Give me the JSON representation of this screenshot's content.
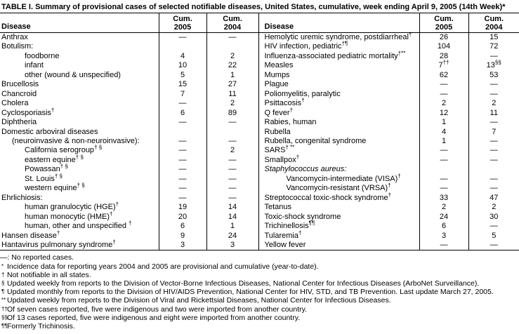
{
  "title": "TABLE I. Summary of provisional cases of selected notifiable diseases, United States, cumulative, week ending April 9, 2005 (14th Week)*",
  "table": {
    "header": {
      "disease_left": "Disease",
      "disease_right": "Disease",
      "cum2005": [
        "Cum.",
        "2005"
      ],
      "cum2004": [
        "Cum.",
        "2004"
      ]
    },
    "rows_left": [
      {
        "disease": "Anthrax",
        "sup": "",
        "indent": 0,
        "c05": "—",
        "c05s": "",
        "c04": "—",
        "c04s": ""
      },
      {
        "disease": "Botulism:",
        "sup": "",
        "indent": 0,
        "c05": "",
        "c05s": "",
        "c04": "",
        "c04s": ""
      },
      {
        "disease": "foodborne",
        "sup": "",
        "indent": 2,
        "c05": "4",
        "c05s": "",
        "c04": "2",
        "c04s": ""
      },
      {
        "disease": "infant",
        "sup": "",
        "indent": 2,
        "c05": "10",
        "c05s": "",
        "c04": "22",
        "c04s": ""
      },
      {
        "disease": "other (wound & unspecified)",
        "sup": "",
        "indent": 2,
        "c05": "5",
        "c05s": "",
        "c04": "1",
        "c04s": ""
      },
      {
        "disease": "Brucellosis",
        "sup": "",
        "indent": 0,
        "c05": "15",
        "c05s": "",
        "c04": "27",
        "c04s": ""
      },
      {
        "disease": "Chancroid",
        "sup": "",
        "indent": 0,
        "c05": "7",
        "c05s": "",
        "c04": "11",
        "c04s": ""
      },
      {
        "disease": "Cholera",
        "sup": "",
        "indent": 0,
        "c05": "—",
        "c05s": "",
        "c04": "2",
        "c04s": ""
      },
      {
        "disease": "Cyclosporiasis",
        "sup": "†",
        "indent": 0,
        "c05": "6",
        "c05s": "",
        "c04": "89",
        "c04s": ""
      },
      {
        "disease": "Diphtheria",
        "sup": "",
        "indent": 0,
        "c05": "—",
        "c05s": "",
        "c04": "—",
        "c04s": ""
      },
      {
        "disease": "Domestic arboviral diseases",
        "sup": "",
        "indent": 0,
        "c05": "",
        "c05s": "",
        "c04": "",
        "c04s": ""
      },
      {
        "disease": "(neuroinvasive & non-neuroinvasive):",
        "sup": "",
        "indent": 1,
        "c05": "—",
        "c05s": "",
        "c04": "—",
        "c04s": ""
      },
      {
        "disease": "California serogroup",
        "sup": "† §",
        "indent": 2,
        "c05": "—",
        "c05s": "",
        "c04": "2",
        "c04s": ""
      },
      {
        "disease": "eastern equine",
        "sup": "† §",
        "indent": 2,
        "c05": "—",
        "c05s": "",
        "c04": "—",
        "c04s": ""
      },
      {
        "disease": "Powassan",
        "sup": "† §",
        "indent": 2,
        "c05": "—",
        "c05s": "",
        "c04": "—",
        "c04s": ""
      },
      {
        "disease": "St. Louis",
        "sup": "† §",
        "indent": 2,
        "c05": "—",
        "c05s": "",
        "c04": "—",
        "c04s": ""
      },
      {
        "disease": "western equine",
        "sup": "† §",
        "indent": 2,
        "c05": "—",
        "c05s": "",
        "c04": "—",
        "c04s": ""
      },
      {
        "disease": "Ehrlichiosis:",
        "sup": "",
        "indent": 0,
        "c05": "—",
        "c05s": "",
        "c04": "—",
        "c04s": ""
      },
      {
        "disease": "human granulocytic (HGE)",
        "sup": "†",
        "indent": 2,
        "c05": "19",
        "c05s": "",
        "c04": "14",
        "c04s": ""
      },
      {
        "disease": "human monocytic (HME)",
        "sup": "†",
        "indent": 2,
        "c05": "20",
        "c05s": "",
        "c04": "14",
        "c04s": ""
      },
      {
        "disease": "human, other and unspecified ",
        "sup": "†",
        "indent": 2,
        "c05": "6",
        "c05s": "",
        "c04": "1",
        "c04s": ""
      },
      {
        "disease": "Hansen disease",
        "sup": "†",
        "indent": 0,
        "c05": "9",
        "c05s": "",
        "c04": "24",
        "c04s": ""
      },
      {
        "disease": "Hantavirus pulmonary syndrome",
        "sup": "†",
        "indent": 0,
        "c05": "3",
        "c05s": "",
        "c04": "3",
        "c04s": ""
      }
    ],
    "rows_right": [
      {
        "disease": "Hemolytic uremic syndrome, postdiarrheal",
        "sup": "†",
        "indent": 0,
        "c05": "26",
        "c05s": "",
        "c04": "15",
        "c04s": ""
      },
      {
        "disease": "HIV infection, pediatric",
        "sup": "†¶",
        "indent": 0,
        "c05": "104",
        "c05s": "",
        "c04": "72",
        "c04s": ""
      },
      {
        "disease": "Influenza-associated pediatric mortality",
        "sup": "†**",
        "indent": 0,
        "c05": "28",
        "c05s": "",
        "c04": "—",
        "c04s": ""
      },
      {
        "disease": "Measles",
        "sup": "",
        "indent": 0,
        "c05": "7",
        "c05s": "††",
        "c04": "13",
        "c04s": "§§"
      },
      {
        "disease": "Mumps",
        "sup": "",
        "indent": 0,
        "c05": "62",
        "c05s": "",
        "c04": "53",
        "c04s": ""
      },
      {
        "disease": "Plague",
        "sup": "",
        "indent": 0,
        "c05": "—",
        "c05s": "",
        "c04": "—",
        "c04s": ""
      },
      {
        "disease": "Poliomyelitis, paralytic",
        "sup": "",
        "indent": 0,
        "c05": "—",
        "c05s": "",
        "c04": "—",
        "c04s": ""
      },
      {
        "disease": "Psittacosis",
        "sup": "†",
        "indent": 0,
        "c05": "2",
        "c05s": "",
        "c04": "2",
        "c04s": ""
      },
      {
        "disease": "Q fever",
        "sup": "†",
        "indent": 0,
        "c05": "12",
        "c05s": "",
        "c04": "11",
        "c04s": ""
      },
      {
        "disease": "Rabies, human",
        "sup": "",
        "indent": 0,
        "c05": "1",
        "c05s": "",
        "c04": "—",
        "c04s": ""
      },
      {
        "disease": "Rubella",
        "sup": "",
        "indent": 0,
        "c05": "4",
        "c05s": "",
        "c04": "7",
        "c04s": ""
      },
      {
        "disease": "Rubella, congenital syndrome",
        "sup": "",
        "indent": 0,
        "c05": "1",
        "c05s": "",
        "c04": "—",
        "c04s": ""
      },
      {
        "disease": "SARS",
        "sup": "† **",
        "indent": 0,
        "c05": "—",
        "c05s": "",
        "c04": "—",
        "c04s": ""
      },
      {
        "disease": "Smallpox",
        "sup": "†",
        "indent": 0,
        "c05": "—",
        "c05s": "",
        "c04": "—",
        "c04s": ""
      },
      {
        "disease": "Staphylococcus aureus:",
        "sup": "",
        "indent": 0,
        "italic": true,
        "c05": "",
        "c05s": "",
        "c04": "",
        "c04s": ""
      },
      {
        "disease": "Vancomycin-intermediate (VISA)",
        "sup": "†",
        "indent": 2,
        "c05": "—",
        "c05s": "",
        "c04": "—",
        "c04s": ""
      },
      {
        "disease": "Vancomycin-resistant (VRSA)",
        "sup": "†",
        "indent": 2,
        "c05": "—",
        "c05s": "",
        "c04": "—",
        "c04s": ""
      },
      {
        "disease": "Streptococcal toxic-shock syndrome",
        "sup": "†",
        "indent": 0,
        "c05": "33",
        "c05s": "",
        "c04": "47",
        "c04s": ""
      },
      {
        "disease": "Tetanus",
        "sup": "",
        "indent": 0,
        "c05": "2",
        "c05s": "",
        "c04": "2",
        "c04s": ""
      },
      {
        "disease": "Toxic-shock syndrome",
        "sup": "",
        "indent": 0,
        "c05": "24",
        "c05s": "",
        "c04": "30",
        "c04s": ""
      },
      {
        "disease": "Trichinellosis",
        "sup": "¶¶",
        "indent": 0,
        "c05": "6",
        "c05s": "",
        "c04": "—",
        "c04s": ""
      },
      {
        "disease": "Tularemia",
        "sup": "†",
        "indent": 0,
        "c05": "3",
        "c05s": "",
        "c04": "5",
        "c04s": ""
      },
      {
        "disease": "Yellow fever",
        "sup": "",
        "indent": 0,
        "c05": "—",
        "c05s": "",
        "c04": "—",
        "c04s": ""
      }
    ]
  },
  "footnotes": [
    {
      "symbol": "—:",
      "superscript": false,
      "text": "No reported cases."
    },
    {
      "symbol": "*",
      "superscript": true,
      "text": "Incidence data for reporting years 2004 and 2005 are provisional and cumulative (year-to-date)."
    },
    {
      "symbol": "†",
      "superscript": true,
      "text": "Not notifiable in all states."
    },
    {
      "symbol": "§",
      "superscript": true,
      "text": "Updated weekly from reports to the Division of Vector-Borne Infectious Diseases, National Center for Infectious Diseases (ArboNet Surveillance)."
    },
    {
      "symbol": "¶",
      "superscript": true,
      "text": "Updated monthly from reports to the Division of HIV/AIDS Prevention, National Center for HIV, STD, and TB Prevention. Last update March 27, 2005."
    },
    {
      "symbol": "**",
      "superscript": true,
      "text": "Updated weekly from reports to the Division of Viral and Rickettsial Diseases, National Center for Infectious Diseases."
    },
    {
      "symbol": "††",
      "superscript": true,
      "text": "Of seven cases reported, five were indigenous and two were imported from another country."
    },
    {
      "symbol": "§§",
      "superscript": true,
      "text": "Of 13 cases reported, five were indigenous and eight were imported from another country."
    },
    {
      "symbol": "¶¶",
      "superscript": true,
      "text": "Formerly Trichinosis."
    }
  ]
}
